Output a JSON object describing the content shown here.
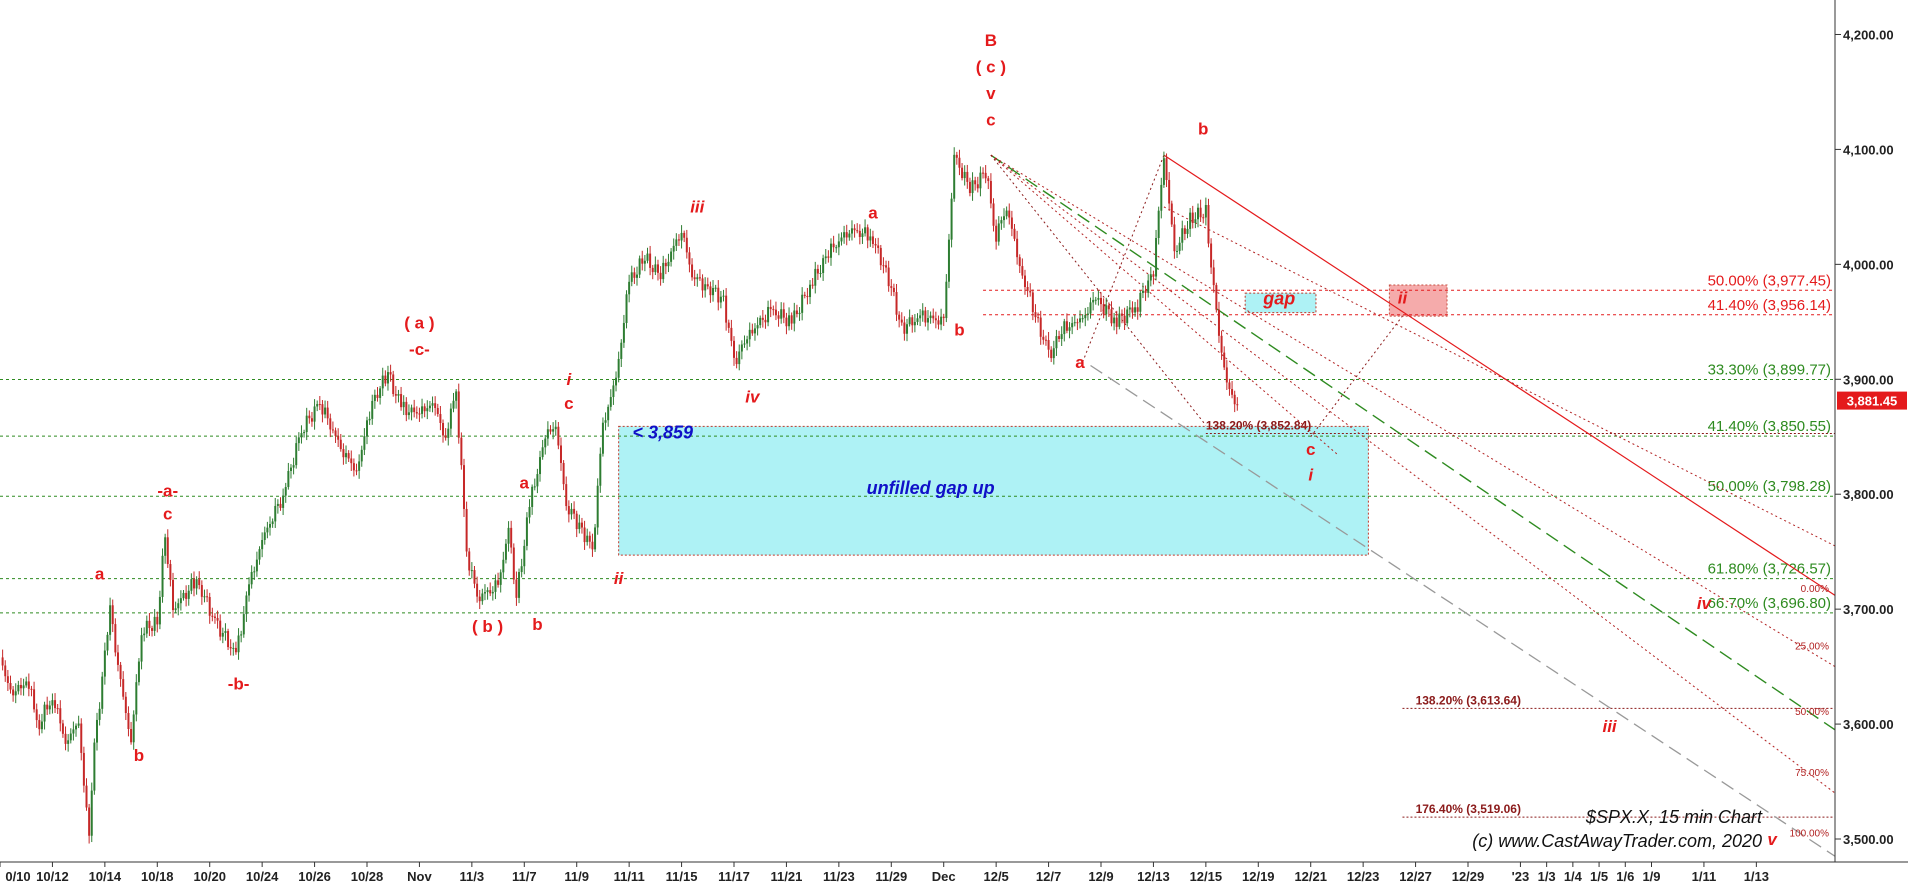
{
  "chart_data": {
    "type": "candlestick",
    "colors": {
      "up": "#2e7d32",
      "down": "#c62828",
      "fib": "#2e8b20",
      "wave": "#e41a1c",
      "gapbox": "#aef2f5",
      "price_tag": "#e41a1c"
    },
    "y_axis": {
      "ylim": [
        3480,
        4230
      ],
      "ticks": [
        "3,500.00",
        "3,600.00",
        "3,700.00",
        "3,800.00",
        "3,900.00",
        "4,000.00",
        "4,100.00",
        "4,200.00"
      ],
      "tick_values": [
        3500,
        3600,
        3700,
        3800,
        3900,
        4000,
        4100,
        4200
      ]
    },
    "x_axis": {
      "tick_labels": [
        "0/10",
        "10/12",
        "10/14",
        "10/18",
        "10/20",
        "10/24",
        "10/26",
        "10/28",
        "Nov",
        "11/3",
        "11/7",
        "11/9",
        "11/11",
        "11/15",
        "11/17",
        "11/21",
        "11/23",
        "11/29",
        "Dec",
        "12/5",
        "12/7",
        "12/9",
        "12/13",
        "12/15",
        "12/19",
        "12/21",
        "12/23",
        "12/27",
        "12/29",
        "'23",
        "1/3",
        "1/4",
        "1/5",
        "1/6",
        "1/9",
        "1/11",
        "1/13"
      ],
      "tick_index": [
        0,
        2,
        4,
        6,
        8,
        10,
        12,
        14,
        16,
        18,
        20,
        22,
        24,
        26,
        28,
        30,
        32,
        34,
        36,
        38,
        40,
        42,
        44,
        46,
        48,
        50,
        52,
        54,
        56,
        58,
        59,
        60,
        61,
        62,
        63,
        65,
        67
      ],
      "range": [
        0,
        70
      ]
    },
    "price_points": [
      [
        0,
        3655
      ],
      [
        0.5,
        3625
      ],
      [
        1,
        3640
      ],
      [
        1.5,
        3600
      ],
      [
        2,
        3625
      ],
      [
        2.5,
        3585
      ],
      [
        3,
        3600
      ],
      [
        3.4,
        3500
      ],
      [
        3.6,
        3580
      ],
      [
        4.2,
        3700
      ],
      [
        4.5,
        3650
      ],
      [
        5,
        3585
      ],
      [
        5.4,
        3680
      ],
      [
        6,
        3690
      ],
      [
        6.3,
        3765
      ],
      [
        6.6,
        3700
      ],
      [
        7.5,
        3725
      ],
      [
        8.2,
        3690
      ],
      [
        9,
        3660
      ],
      [
        9.5,
        3720
      ],
      [
        10,
        3760
      ],
      [
        10.8,
        3800
      ],
      [
        11.5,
        3855
      ],
      [
        12.2,
        3880
      ],
      [
        13,
        3840
      ],
      [
        13.6,
        3820
      ],
      [
        14.2,
        3880
      ],
      [
        14.8,
        3905
      ],
      [
        15.3,
        3875
      ],
      [
        16,
        3870
      ],
      [
        16.5,
        3880
      ],
      [
        17,
        3850
      ],
      [
        17.4,
        3890
      ],
      [
        17.8,
        3750
      ],
      [
        18.2,
        3710
      ],
      [
        19,
        3720
      ],
      [
        19.4,
        3770
      ],
      [
        19.7,
        3710
      ],
      [
        20.2,
        3790
      ],
      [
        20.8,
        3850
      ],
      [
        21.2,
        3860
      ],
      [
        21.6,
        3790
      ],
      [
        22.2,
        3770
      ],
      [
        22.6,
        3750
      ],
      [
        23,
        3860
      ],
      [
        23.5,
        3900
      ],
      [
        24,
        3985
      ],
      [
        24.6,
        4005
      ],
      [
        25.2,
        3990
      ],
      [
        26,
        4030
      ],
      [
        26.4,
        3990
      ],
      [
        27,
        3980
      ],
      [
        27.6,
        3970
      ],
      [
        28,
        3915
      ],
      [
        28.6,
        3940
      ],
      [
        29.4,
        3960
      ],
      [
        30.2,
        3950
      ],
      [
        31,
        3985
      ],
      [
        31.6,
        4010
      ],
      [
        32.4,
        4030
      ],
      [
        33.2,
        4025
      ],
      [
        33.8,
        3995
      ],
      [
        34.4,
        3945
      ],
      [
        35.2,
        3955
      ],
      [
        36,
        3950
      ],
      [
        36.4,
        4095
      ],
      [
        37,
        4065
      ],
      [
        37.6,
        4080
      ],
      [
        38,
        4025
      ],
      [
        38.4,
        4050
      ],
      [
        39,
        3990
      ],
      [
        39.6,
        3950
      ],
      [
        40,
        3920
      ],
      [
        40.6,
        3945
      ],
      [
        41.2,
        3950
      ],
      [
        41.8,
        3970
      ],
      [
        42.6,
        3950
      ],
      [
        43.4,
        3965
      ],
      [
        44,
        3995
      ],
      [
        44.4,
        4095
      ],
      [
        44.8,
        4010
      ],
      [
        45.4,
        4040
      ],
      [
        46,
        4045
      ],
      [
        46.4,
        3955
      ],
      [
        46.8,
        3895
      ],
      [
        47.2,
        3878
      ]
    ],
    "fib_levels": [
      {
        "label": "50.00% (3,977.45)",
        "value": 3977.45,
        "color": "#e41a1c"
      },
      {
        "label": "41.40% (3,956.14)",
        "value": 3956.14,
        "color": "#e41a1c"
      },
      {
        "label": "33.30% (3,899.77)",
        "value": 3899.77,
        "color": "#2e8b20"
      },
      {
        "label": "41.40% (3,850.55)",
        "value": 3850.55,
        "color": "#2e8b20"
      },
      {
        "label": "50.00% (3,798.28)",
        "value": 3798.28,
        "color": "#2e8b20"
      },
      {
        "label": "61.80% (3,726.57)",
        "value": 3726.57,
        "color": "#2e8b20"
      },
      {
        "label": "66.70% (3,696.80)",
        "value": 3696.8,
        "color": "#2e8b20"
      }
    ],
    "extension_levels": [
      {
        "label": "138.20% (3,852.84)",
        "value": 3852.84
      },
      {
        "label": "138.20% (3,613.64)",
        "value": 3613.64
      },
      {
        "label": "176.40% (3,519.06)",
        "value": 3519.06
      }
    ],
    "channel_pct_labels": [
      "25.00%",
      "50.00%",
      "75.00%",
      "100.00%",
      "0.00%"
    ],
    "wave_labels": [
      {
        "text": "a",
        "x": 3.8,
        "y": 3726
      },
      {
        "text": "b",
        "x": 5.3,
        "y": 3568
      },
      {
        "text": "-a-",
        "x": 6.4,
        "y": 3798
      },
      {
        "text": "c",
        "x": 6.4,
        "y": 3778
      },
      {
        "text": "-b-",
        "x": 9.1,
        "y": 3630
      },
      {
        "text": "( a )",
        "x": 16,
        "y": 3944
      },
      {
        "text": "-c-",
        "x": 16,
        "y": 3921
      },
      {
        "text": "( b )",
        "x": 18.6,
        "y": 3680
      },
      {
        "text": "a",
        "x": 20,
        "y": 3805
      },
      {
        "text": "b",
        "x": 20.5,
        "y": 3682
      },
      {
        "text": "i",
        "x": 21.7,
        "y": 3895
      },
      {
        "text": "c",
        "x": 21.7,
        "y": 3874
      },
      {
        "text": "ii",
        "x": 23.6,
        "y": 3722
      },
      {
        "text": "iii",
        "x": 26.6,
        "y": 4045
      },
      {
        "text": "iv",
        "x": 28.7,
        "y": 3880
      },
      {
        "text": "a",
        "x": 33.3,
        "y": 4040
      },
      {
        "text": "b",
        "x": 36.6,
        "y": 3938
      },
      {
        "text": "B",
        "x": 37.8,
        "y": 4190
      },
      {
        "text": "( c )",
        "x": 37.8,
        "y": 4167
      },
      {
        "text": "v",
        "x": 37.8,
        "y": 4144
      },
      {
        "text": "c",
        "x": 37.8,
        "y": 4121
      },
      {
        "text": "a",
        "x": 41.2,
        "y": 3910
      },
      {
        "text": "b",
        "x": 45.9,
        "y": 4113
      },
      {
        "text": "c",
        "x": 50,
        "y": 3834
      },
      {
        "text": "i",
        "x": 50,
        "y": 3812
      },
      {
        "text": "ii",
        "x": 53.5,
        "y": 3966
      },
      {
        "text": "iv",
        "x": 65,
        "y": 3700
      },
      {
        "text": "iii",
        "x": 61.4,
        "y": 3593
      },
      {
        "text": "v",
        "x": 67.6,
        "y": 3495
      }
    ],
    "annotations": {
      "gap_level_label": "< 3,859",
      "gap_box_label": "unfilled gap up",
      "small_gap_label": "gap",
      "last_price": "3,881.45",
      "symbol_label": "$SPX.X, 15 min Chart",
      "copyright": "(c) www.CastAwayTrader.com, 2020"
    }
  }
}
